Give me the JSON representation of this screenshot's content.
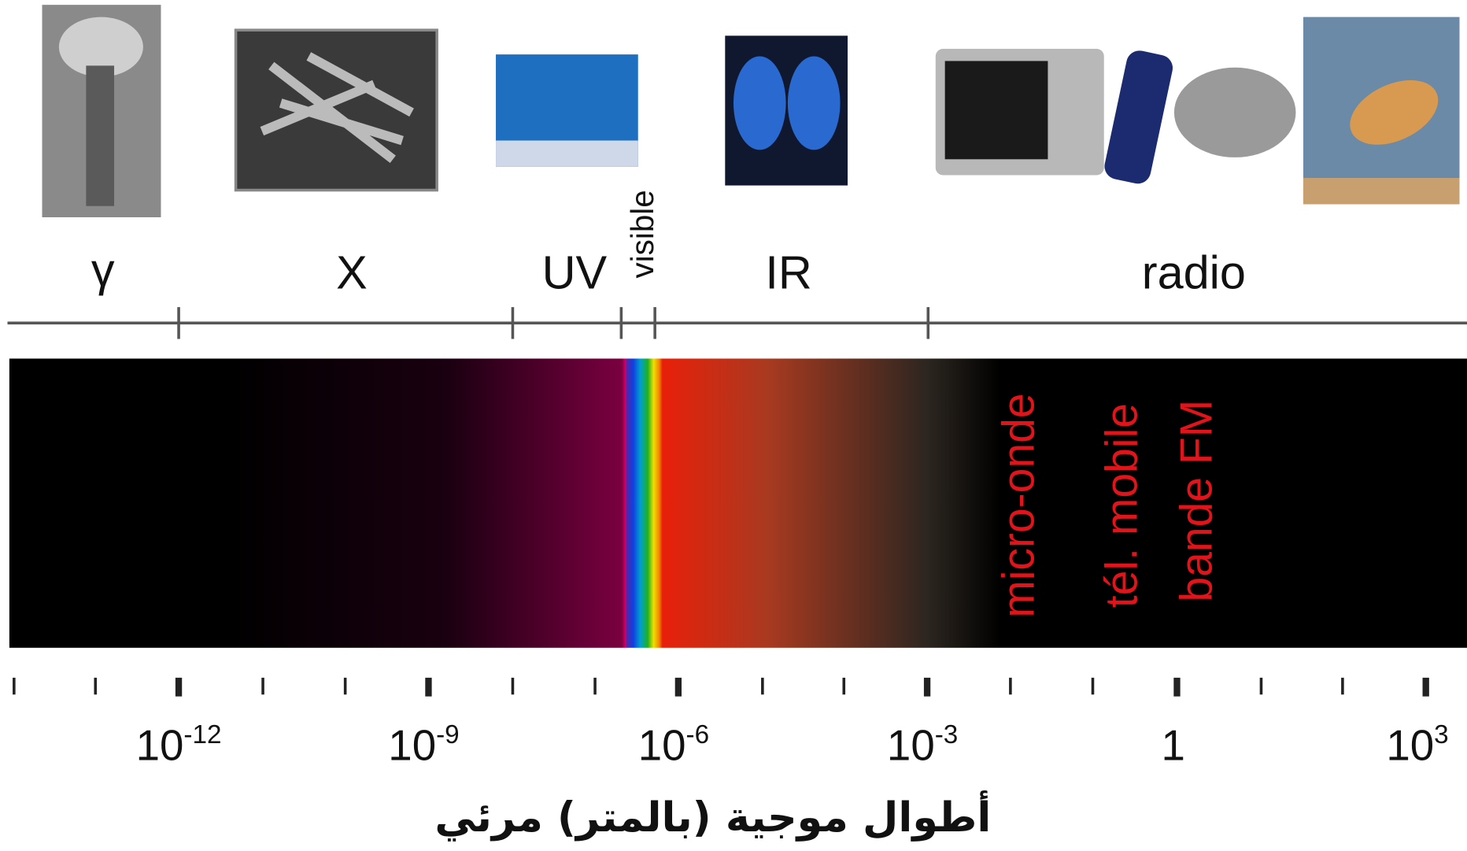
{
  "bands": [
    "γ",
    "X",
    "UV",
    "visible",
    "IR",
    "radio"
  ],
  "applications": [
    "micro-onde",
    "tél. mobile",
    "bande FM"
  ],
  "scale_labels": [
    {
      "base": "10",
      "exponent": "-12"
    },
    {
      "base": "10",
      "exponent": "-9"
    },
    {
      "base": "10",
      "exponent": "-6"
    },
    {
      "base": "10",
      "exponent": "-3"
    },
    {
      "base": "1"
    },
    {
      "base": "10",
      "exponent": "3"
    }
  ],
  "axis_title": "أطوال موجية (بالمتر) مرئي"
}
